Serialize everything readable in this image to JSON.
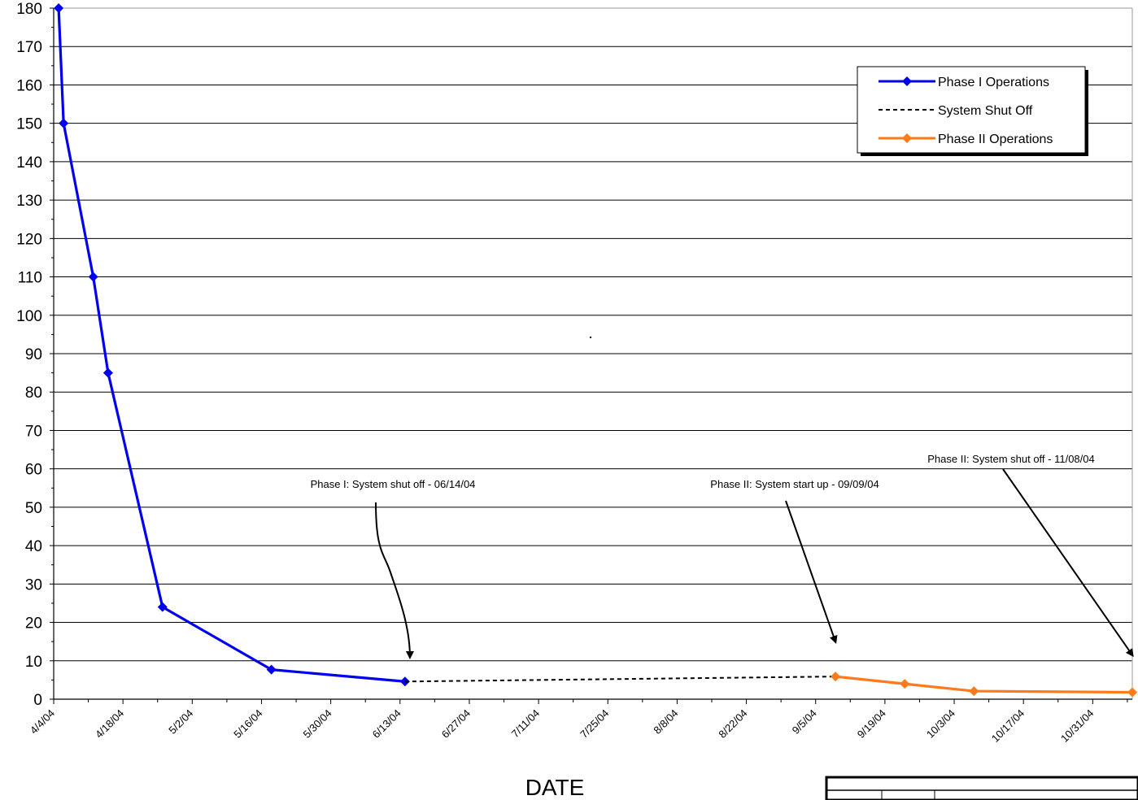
{
  "chart_data": {
    "type": "line",
    "title": "",
    "xlabel": "DATE",
    "ylabel": "",
    "ylim": [
      0,
      180
    ],
    "y_ticks": [
      "0",
      "10",
      "20",
      "30",
      "40",
      "50",
      "60",
      "70",
      "80",
      "90",
      "100",
      "110",
      "120",
      "130",
      "140",
      "150",
      "160",
      "170",
      "180"
    ],
    "x_tick_labels": [
      "4/4/04",
      "4/18/04",
      "5/2/04",
      "5/16/04",
      "5/30/04",
      "6/13/04",
      "6/27/04",
      "7/11/04",
      "7/25/04",
      "8/8/04",
      "8/22/04",
      "9/5/04",
      "9/19/04",
      "10/3/04",
      "10/17/04",
      "10/31/04"
    ],
    "x_range": [
      "2004-04-04",
      "2004-11-08"
    ],
    "grid": "horizontal",
    "legend_position": "top-right",
    "series": [
      {
        "name": "Phase I Operations",
        "color": "#0000ee",
        "style": "solid",
        "marker": "diamond",
        "points": [
          {
            "x": "2004-04-05",
            "y": 180
          },
          {
            "x": "2004-04-06",
            "y": 150
          },
          {
            "x": "2004-04-12",
            "y": 110
          },
          {
            "x": "2004-04-15",
            "y": 85
          },
          {
            "x": "2004-04-26",
            "y": 24
          },
          {
            "x": "2004-05-18",
            "y": 7.7
          },
          {
            "x": "2004-06-14",
            "y": 4.6
          }
        ]
      },
      {
        "name": "System Shut Off",
        "color": "#000000",
        "style": "dashed",
        "marker": "none",
        "points": [
          {
            "x": "2004-06-14",
            "y": 4.6
          },
          {
            "x": "2004-09-09",
            "y": 5.9
          }
        ]
      },
      {
        "name": "Phase II Operations",
        "color": "#ff7a1a",
        "style": "solid",
        "marker": "diamond",
        "points": [
          {
            "x": "2004-09-09",
            "y": 5.9
          },
          {
            "x": "2004-09-23",
            "y": 4.0
          },
          {
            "x": "2004-10-07",
            "y": 2.1
          },
          {
            "x": "2004-11-08",
            "y": 1.8
          }
        ]
      }
    ],
    "annotations": [
      {
        "text": "Phase I: System shut off - 06/14/04",
        "target": {
          "x": "2004-06-15",
          "y": 11
        },
        "curve": true
      },
      {
        "text": "Phase II: System start up - 09/09/04",
        "target": {
          "x": "2004-09-09",
          "y": 15
        },
        "curve": false
      },
      {
        "text": "Phase II: System shut off - 11/08/04",
        "target": {
          "x": "2004-11-08",
          "y": 11.5
        },
        "curve": false
      }
    ]
  }
}
